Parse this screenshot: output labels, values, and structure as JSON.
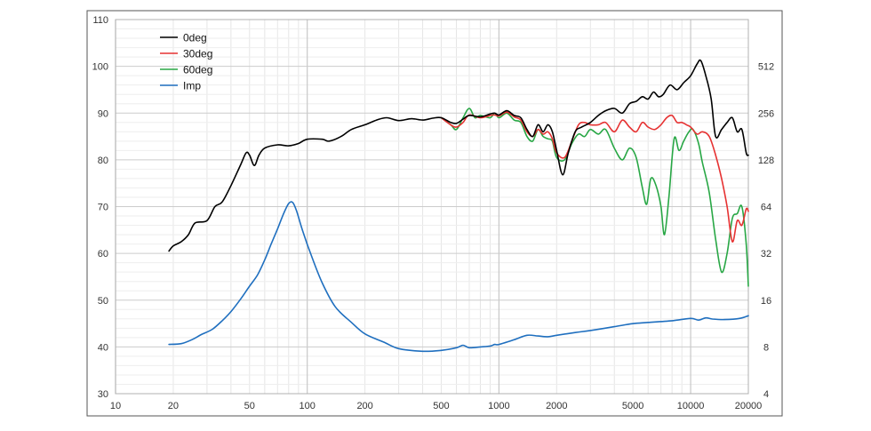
{
  "chart_data": {
    "type": "line",
    "x_scale": "log",
    "xlim": [
      10,
      20000
    ],
    "ylim_left": [
      30,
      110
    ],
    "ylim_right": [
      4,
      1024
    ],
    "y_right_scale": "log",
    "grid": true,
    "legend_position": "top-left",
    "x_ticks": [
      10,
      20,
      50,
      100,
      200,
      500,
      1000,
      2000,
      5000,
      10000,
      20000
    ],
    "x_tick_labels": [
      "10",
      "20",
      "50",
      "100",
      "200",
      "500",
      "1000",
      "2000",
      "5000",
      "10000",
      "20000"
    ],
    "y_left_ticks": [
      30,
      40,
      50,
      60,
      70,
      80,
      90,
      100,
      110
    ],
    "y_left_tick_labels": [
      "30",
      "40",
      "50",
      "60",
      "70",
      "80",
      "90",
      "100",
      "110"
    ],
    "y_right_ticks": [
      4,
      8,
      16,
      32,
      64,
      128,
      256,
      512
    ],
    "y_right_tick_labels": [
      "4",
      "8",
      "16",
      "32",
      "64",
      "128",
      "256",
      "512"
    ],
    "series": [
      {
        "name": "0deg",
        "color": "#000000",
        "axis": "left",
        "points": [
          [
            19,
            60.5
          ],
          [
            20,
            61.6
          ],
          [
            22,
            62.5
          ],
          [
            24,
            64.0
          ],
          [
            26,
            66.5
          ],
          [
            30,
            67.0
          ],
          [
            33,
            70.0
          ],
          [
            36,
            71.0
          ],
          [
            40,
            74.5
          ],
          [
            45,
            79.0
          ],
          [
            48,
            81.5
          ],
          [
            50,
            81.0
          ],
          [
            53,
            78.8
          ],
          [
            56,
            81.0
          ],
          [
            60,
            82.5
          ],
          [
            70,
            83.2
          ],
          [
            80,
            83.0
          ],
          [
            90,
            83.5
          ],
          [
            100,
            84.4
          ],
          [
            120,
            84.4
          ],
          [
            130,
            84.0
          ],
          [
            150,
            85.0
          ],
          [
            170,
            86.5
          ],
          [
            200,
            87.5
          ],
          [
            230,
            88.5
          ],
          [
            260,
            89.0
          ],
          [
            300,
            88.4
          ],
          [
            350,
            88.8
          ],
          [
            400,
            88.5
          ],
          [
            450,
            88.9
          ],
          [
            500,
            89.0
          ],
          [
            560,
            88.0
          ],
          [
            600,
            87.8
          ],
          [
            650,
            88.7
          ],
          [
            700,
            89.5
          ],
          [
            800,
            89.2
          ],
          [
            900,
            89.8
          ],
          [
            950,
            90.0
          ],
          [
            1000,
            89.6
          ],
          [
            1100,
            90.5
          ],
          [
            1200,
            89.5
          ],
          [
            1300,
            89.0
          ],
          [
            1400,
            86.5
          ],
          [
            1500,
            85.0
          ],
          [
            1600,
            87.5
          ],
          [
            1700,
            86.0
          ],
          [
            1800,
            87.5
          ],
          [
            1900,
            86.0
          ],
          [
            2000,
            82.0
          ],
          [
            2150,
            76.8
          ],
          [
            2300,
            81.5
          ],
          [
            2500,
            86.0
          ],
          [
            2700,
            87.0
          ],
          [
            3000,
            88.0
          ],
          [
            3300,
            89.5
          ],
          [
            3600,
            90.5
          ],
          [
            4000,
            91.0
          ],
          [
            4400,
            90.0
          ],
          [
            4800,
            92.0
          ],
          [
            5200,
            92.5
          ],
          [
            5600,
            93.5
          ],
          [
            6000,
            93.0
          ],
          [
            6400,
            94.5
          ],
          [
            6800,
            93.5
          ],
          [
            7200,
            94.0
          ],
          [
            7800,
            96.0
          ],
          [
            8500,
            95.0
          ],
          [
            9200,
            96.5
          ],
          [
            10000,
            98.0
          ],
          [
            10800,
            100.5
          ],
          [
            11300,
            101.2
          ],
          [
            12000,
            98.0
          ],
          [
            12800,
            93.0
          ],
          [
            13500,
            85.0
          ],
          [
            14500,
            86.5
          ],
          [
            15500,
            88.0
          ],
          [
            16500,
            89.0
          ],
          [
            17500,
            86.0
          ],
          [
            18500,
            86.5
          ],
          [
            19500,
            81.5
          ],
          [
            20000,
            81.0
          ]
        ]
      },
      {
        "name": "30deg",
        "color": "#e63232",
        "axis": "left",
        "points": [
          [
            500,
            89.0
          ],
          [
            560,
            87.5
          ],
          [
            600,
            87.0
          ],
          [
            650,
            88.0
          ],
          [
            700,
            89.6
          ],
          [
            800,
            89.0
          ],
          [
            900,
            89.5
          ],
          [
            950,
            89.6
          ],
          [
            1000,
            89.4
          ],
          [
            1100,
            90.2
          ],
          [
            1200,
            89.2
          ],
          [
            1300,
            88.5
          ],
          [
            1400,
            86.0
          ],
          [
            1500,
            85.0
          ],
          [
            1600,
            86.5
          ],
          [
            1700,
            85.5
          ],
          [
            1800,
            86.0
          ],
          [
            1900,
            84.5
          ],
          [
            2000,
            81.5
          ],
          [
            2200,
            80.5
          ],
          [
            2400,
            84.0
          ],
          [
            2600,
            87.5
          ],
          [
            2800,
            88.0
          ],
          [
            3000,
            87.5
          ],
          [
            3300,
            87.5
          ],
          [
            3600,
            88.0
          ],
          [
            4000,
            86.0
          ],
          [
            4400,
            88.5
          ],
          [
            4800,
            87.0
          ],
          [
            5200,
            86.0
          ],
          [
            5600,
            88.0
          ],
          [
            6000,
            87.0
          ],
          [
            6500,
            86.5
          ],
          [
            7000,
            87.5
          ],
          [
            7500,
            89.0
          ],
          [
            8000,
            89.5
          ],
          [
            8500,
            88.0
          ],
          [
            9000,
            88.0
          ],
          [
            9500,
            87.5
          ],
          [
            10000,
            87.0
          ],
          [
            10800,
            85.5
          ],
          [
            11500,
            86.0
          ],
          [
            12500,
            85.0
          ],
          [
            13500,
            81.0
          ],
          [
            14500,
            76.0
          ],
          [
            15500,
            70.0
          ],
          [
            16500,
            62.5
          ],
          [
            17500,
            67.0
          ],
          [
            18500,
            66.0
          ],
          [
            19500,
            69.5
          ],
          [
            20000,
            69.0
          ]
        ]
      },
      {
        "name": "60deg",
        "color": "#28a745",
        "axis": "left",
        "points": [
          [
            500,
            89.0
          ],
          [
            560,
            87.5
          ],
          [
            600,
            86.5
          ],
          [
            650,
            89.0
          ],
          [
            700,
            91.0
          ],
          [
            750,
            89.0
          ],
          [
            800,
            89.5
          ],
          [
            900,
            89.0
          ],
          [
            950,
            90.0
          ],
          [
            1000,
            89.0
          ],
          [
            1100,
            90.0
          ],
          [
            1200,
            88.5
          ],
          [
            1300,
            88.0
          ],
          [
            1400,
            85.0
          ],
          [
            1500,
            84.0
          ],
          [
            1600,
            86.5
          ],
          [
            1700,
            85.0
          ],
          [
            1800,
            84.5
          ],
          [
            1900,
            84.0
          ],
          [
            2000,
            80.5
          ],
          [
            2200,
            80.0
          ],
          [
            2400,
            83.5
          ],
          [
            2600,
            85.5
          ],
          [
            2800,
            85.0
          ],
          [
            3000,
            86.5
          ],
          [
            3300,
            85.5
          ],
          [
            3600,
            86.5
          ],
          [
            4000,
            82.5
          ],
          [
            4400,
            80.0
          ],
          [
            4800,
            82.5
          ],
          [
            5200,
            80.5
          ],
          [
            5600,
            74.0
          ],
          [
            5900,
            70.5
          ],
          [
            6200,
            76.0
          ],
          [
            6600,
            74.5
          ],
          [
            7000,
            70.0
          ],
          [
            7300,
            64.0
          ],
          [
            7700,
            72.0
          ],
          [
            8200,
            84.5
          ],
          [
            8700,
            82.0
          ],
          [
            9200,
            84.0
          ],
          [
            9800,
            86.0
          ],
          [
            10300,
            86.5
          ],
          [
            11000,
            83.5
          ],
          [
            11500,
            79.5
          ],
          [
            12500,
            73.0
          ],
          [
            13500,
            63.0
          ],
          [
            14500,
            56.0
          ],
          [
            15500,
            60.0
          ],
          [
            16500,
            67.5
          ],
          [
            17500,
            68.5
          ],
          [
            18500,
            70.0
          ],
          [
            19500,
            62.0
          ],
          [
            20000,
            53.0
          ]
        ]
      },
      {
        "name": "Imp",
        "color": "#1f6fbf",
        "axis": "right",
        "points": [
          [
            19,
            8.3
          ],
          [
            22,
            8.4
          ],
          [
            25,
            8.9
          ],
          [
            28,
            9.6
          ],
          [
            32,
            10.4
          ],
          [
            36,
            11.8
          ],
          [
            40,
            13.5
          ],
          [
            45,
            16.3
          ],
          [
            50,
            19.7
          ],
          [
            55,
            23.2
          ],
          [
            60,
            29.0
          ],
          [
            65,
            37.0
          ],
          [
            70,
            46.0
          ],
          [
            75,
            57.0
          ],
          [
            80,
            67.0
          ],
          [
            84,
            68.0
          ],
          [
            88,
            60.0
          ],
          [
            95,
            44.0
          ],
          [
            105,
            31.0
          ],
          [
            120,
            20.5
          ],
          [
            140,
            14.5
          ],
          [
            170,
            11.5
          ],
          [
            200,
            9.7
          ],
          [
            250,
            8.6
          ],
          [
            300,
            7.8
          ],
          [
            400,
            7.5
          ],
          [
            500,
            7.6
          ],
          [
            600,
            7.9
          ],
          [
            650,
            8.2
          ],
          [
            700,
            7.9
          ],
          [
            800,
            8.0
          ],
          [
            900,
            8.1
          ],
          [
            950,
            8.3
          ],
          [
            1000,
            8.3
          ],
          [
            1200,
            8.9
          ],
          [
            1400,
            9.5
          ],
          [
            1600,
            9.4
          ],
          [
            1800,
            9.3
          ],
          [
            2000,
            9.5
          ],
          [
            2500,
            9.9
          ],
          [
            3000,
            10.2
          ],
          [
            4000,
            10.8
          ],
          [
            5000,
            11.3
          ],
          [
            6000,
            11.5
          ],
          [
            8000,
            11.8
          ],
          [
            10000,
            12.2
          ],
          [
            11000,
            11.9
          ],
          [
            12000,
            12.3
          ],
          [
            13000,
            12.1
          ],
          [
            15000,
            12.0
          ],
          [
            18000,
            12.2
          ],
          [
            20000,
            12.7
          ]
        ]
      }
    ]
  }
}
